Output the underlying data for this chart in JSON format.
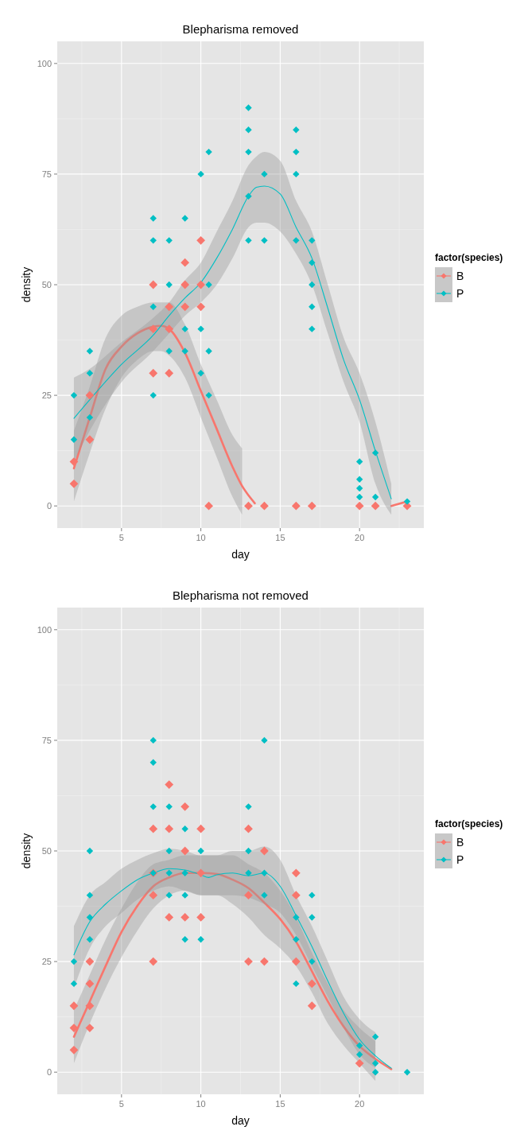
{
  "chart_data": [
    {
      "type": "scatter",
      "title": "Blepharisma removed",
      "xlabel": "day",
      "ylabel": "density",
      "legend_title": "factor(species)",
      "xlim": [
        0.95,
        24.05
      ],
      "ylim": [
        -5,
        105
      ],
      "xticks": [
        5,
        10,
        15,
        20
      ],
      "yticks": [
        0,
        25,
        50,
        75,
        100
      ],
      "grid": true,
      "legend": "right",
      "marker": "diamond",
      "series": [
        {
          "name": "B",
          "color": "#f8766d",
          "x": [
            2,
            2,
            3,
            3,
            7,
            7,
            7,
            8,
            8,
            8,
            9,
            9,
            9,
            10,
            10,
            10,
            10.5,
            13,
            14,
            16,
            17,
            20,
            21,
            23
          ],
          "values": [
            10,
            5,
            15,
            25,
            50,
            40,
            30,
            45,
            40,
            30,
            55,
            50,
            45,
            60,
            50,
            45,
            0,
            0,
            0,
            0,
            0,
            0,
            0,
            0
          ]
        },
        {
          "name": "P",
          "color": "#00bfc4",
          "x": [
            2,
            2,
            3,
            3,
            3,
            7,
            7,
            7,
            7,
            8,
            8,
            8,
            9,
            9,
            9,
            10,
            10,
            10,
            10.5,
            10.5,
            10.5,
            10.5,
            13,
            13,
            13,
            13,
            13,
            14,
            14,
            16,
            16,
            16,
            16,
            17,
            17,
            17,
            17,
            17,
            20,
            20,
            20,
            20,
            21,
            21,
            23
          ],
          "values": [
            25,
            15,
            35,
            30,
            20,
            65,
            60,
            45,
            25,
            60,
            50,
            35,
            65,
            40,
            35,
            75,
            40,
            30,
            80,
            50,
            35,
            25,
            90,
            85,
            80,
            70,
            60,
            75,
            60,
            85,
            80,
            75,
            60,
            60,
            55,
            50,
            45,
            40,
            10,
            6,
            4,
            2,
            12,
            2,
            1
          ]
        },
        {
          "type": "line",
          "marker": "none",
          "color": "#f8766d",
          "x": [
            2,
            3,
            4,
            5,
            6,
            7,
            7.5,
            8,
            9,
            10,
            11,
            12,
            12.6,
            13,
            13.4,
            17,
            22,
            23
          ],
          "values": [
            8.5,
            20,
            31,
            36,
            39,
            40.5,
            40.7,
            40,
            34.6,
            26,
            17.4,
            8.8,
            4.5,
            2.4,
            0.6,
            null,
            0,
            1
          ],
          "lower": [
            1,
            12,
            22,
            29,
            33,
            35,
            35,
            34,
            29,
            20,
            11,
            2,
            -2,
            null,
            null,
            null,
            null,
            null
          ],
          "upper": [
            17,
            27,
            38,
            43,
            45,
            46,
            46,
            46,
            41,
            32,
            24,
            16,
            13,
            null,
            null,
            null,
            null,
            null
          ]
        },
        {
          "type": "line",
          "marker": "none",
          "color": "#00bfc4",
          "x": [
            2,
            3,
            5,
            7,
            8,
            9,
            10,
            11,
            12,
            13,
            13.5,
            14,
            15,
            16,
            17,
            18,
            19,
            20,
            21,
            22
          ],
          "values": [
            19.8,
            24,
            32,
            38.6,
            43,
            47,
            50.5,
            56,
            62.6,
            70,
            72,
            72.3,
            70.5,
            63,
            56,
            44.7,
            33,
            24,
            12.4,
            1.6
          ],
          "lower": [
            10,
            17,
            28,
            35,
            39,
            43,
            46,
            50,
            56,
            63,
            64,
            64,
            62,
            57,
            50,
            39,
            28,
            19,
            5,
            -2
          ],
          "upper": [
            29,
            31,
            37,
            42.5,
            46,
            51,
            55,
            62,
            69,
            77,
            79,
            80,
            78,
            69,
            62,
            50,
            38,
            30,
            19,
            5
          ]
        }
      ]
    },
    {
      "type": "scatter",
      "title": "Blepharisma not removed",
      "xlabel": "day",
      "ylabel": "density",
      "legend_title": "factor(species)",
      "xlim": [
        0.95,
        24.05
      ],
      "ylim": [
        -5,
        105
      ],
      "xticks": [
        5,
        10,
        15,
        20
      ],
      "yticks": [
        0,
        25,
        50,
        75,
        100
      ],
      "grid": true,
      "legend": "right",
      "marker": "diamond",
      "series": [
        {
          "name": "B",
          "color": "#f8766d",
          "x": [
            2,
            2,
            2,
            3,
            3,
            3,
            3,
            7,
            7,
            7,
            7,
            8,
            8,
            8,
            9,
            9,
            9,
            10,
            10,
            10,
            13,
            13,
            13,
            14,
            14,
            16,
            16,
            16,
            17,
            17,
            20
          ],
          "values": [
            15,
            10,
            5,
            25,
            20,
            15,
            10,
            55,
            45,
            40,
            25,
            65,
            55,
            35,
            60,
            50,
            35,
            55,
            45,
            35,
            55,
            40,
            25,
            50,
            25,
            45,
            40,
            25,
            20,
            15,
            2
          ]
        },
        {
          "name": "P",
          "color": "#00bfc4",
          "x": [
            2,
            2,
            3,
            3,
            3,
            3,
            7,
            7,
            7,
            7,
            8,
            8,
            8,
            8,
            9,
            9,
            9,
            9,
            10,
            10,
            13,
            13,
            13,
            14,
            14,
            14,
            16,
            16,
            16,
            17,
            17,
            17,
            20,
            20,
            21,
            21,
            21,
            23
          ],
          "values": [
            25,
            20,
            50,
            40,
            35,
            30,
            75,
            70,
            60,
            45,
            60,
            50,
            45,
            40,
            55,
            45,
            40,
            30,
            50,
            30,
            60,
            50,
            45,
            75,
            45,
            40,
            35,
            30,
            20,
            40,
            35,
            25,
            6,
            4,
            8,
            2,
            0,
            0
          ]
        },
        {
          "type": "line",
          "marker": "none",
          "color": "#f8766d",
          "x": [
            2,
            3,
            4,
            5,
            6,
            7,
            8,
            9,
            10,
            11,
            12,
            13,
            14,
            15,
            16,
            17,
            18,
            19,
            20,
            21,
            22
          ],
          "values": [
            8,
            16,
            24,
            31.7,
            37.6,
            42,
            44,
            45,
            45,
            44.8,
            43.5,
            41.6,
            38.3,
            34.6,
            29.5,
            22.8,
            16,
            10.3,
            5.9,
            3,
            0.7
          ],
          "lower": [
            2,
            11,
            19,
            26,
            32,
            37,
            40,
            41,
            40,
            40,
            38,
            35,
            31,
            28,
            24,
            18,
            11,
            6,
            2,
            -2,
            null
          ],
          "upper": [
            14,
            22,
            30,
            37,
            43,
            47,
            48,
            49,
            49,
            49,
            49,
            47,
            45,
            41,
            35,
            27,
            20,
            14,
            10,
            7,
            null
          ]
        },
        {
          "type": "line",
          "marker": "none",
          "color": "#00bfc4",
          "x": [
            2,
            3,
            4,
            5,
            6,
            7,
            8,
            9,
            10,
            10.5,
            11,
            12,
            13,
            14,
            15,
            16,
            17,
            18,
            19,
            20,
            21,
            22
          ],
          "values": [
            26.5,
            34,
            38,
            41,
            43.5,
            45,
            46,
            45.7,
            44.6,
            44,
            44.6,
            45,
            44.4,
            45,
            42,
            35.4,
            28.4,
            20.6,
            13.3,
            7.4,
            3.7,
            0.9
          ],
          "lower": [
            19,
            28,
            33,
            36,
            39,
            41,
            42,
            41,
            40,
            40,
            40,
            40,
            39.5,
            38,
            36,
            31,
            24,
            17,
            10,
            4,
            1,
            null
          ],
          "upper": [
            33,
            40,
            43,
            46,
            48,
            49.5,
            50.5,
            50,
            49,
            49,
            49,
            50,
            50,
            51,
            48,
            40,
            33,
            25,
            17,
            12,
            9,
            null
          ]
        }
      ]
    }
  ]
}
